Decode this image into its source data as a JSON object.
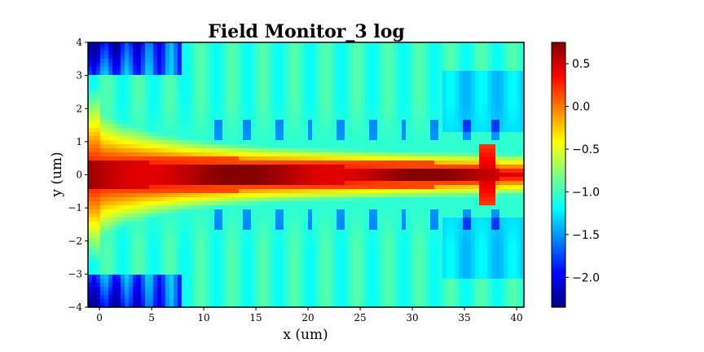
{
  "chart_data": {
    "type": "heatmap",
    "title": "Field Monitor_3 log",
    "xlabel": "x (um)",
    "ylabel": "y (um)",
    "xlim": [
      -1.1,
      40.7
    ],
    "ylim": [
      -4,
      4
    ],
    "xticks": [
      0,
      5,
      10,
      15,
      20,
      25,
      30,
      35,
      40
    ],
    "xtick_labels": [
      "0",
      "5",
      "10",
      "15",
      "20",
      "25",
      "30",
      "35",
      "40"
    ],
    "yticks": [
      -4,
      -3,
      -2,
      -1,
      0,
      1,
      2,
      3,
      4
    ],
    "ytick_labels": [
      "−4",
      "−3",
      "−2",
      "−1",
      "0",
      "1",
      "2",
      "3",
      "4"
    ],
    "colormap": "jet",
    "clim": [
      -2.35,
      0.75
    ],
    "colorbar_ticks": [
      0.5,
      0.0,
      -0.5,
      -1.0,
      -1.5,
      -2.0
    ],
    "colorbar_tick_labels": [
      "0.5",
      "0.0",
      "−0.5",
      "−1.0",
      "−1.5",
      "−2.0"
    ],
    "description_values": {
      "core_log_intensity": 0.6,
      "taper_halfwidth_start_um": 0.4,
      "taper_halfwidth_end_um": 0.15,
      "background_log_intensity": -1.0,
      "corner_min_log_intensity": -2.2,
      "hotspot_x_um": 37.2
    }
  }
}
